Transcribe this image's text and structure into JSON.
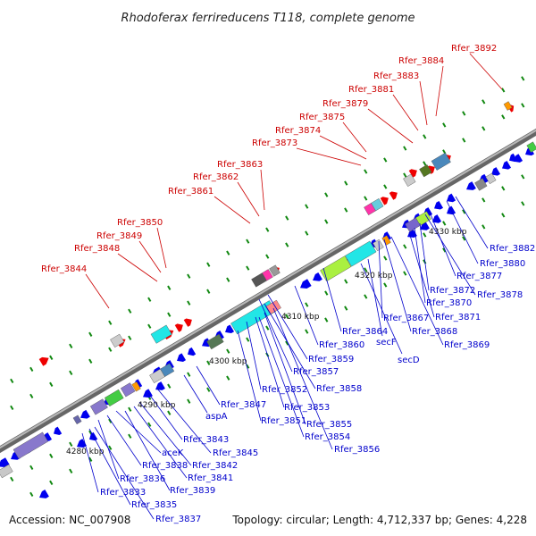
{
  "title": "Rhodoferax ferrireducens T118, complete genome",
  "footer": {
    "accession": "Accession: NC_007908",
    "summary": "Topology: circular; Length: 4,712,337 bp; Genes: 4,228"
  },
  "colors": {
    "backbone": "#888888",
    "forward_label": "#cc0000",
    "reverse_label": "#0000cc",
    "forward_gene": "#ee0000",
    "reverse_gene": "#0000ee",
    "tick": "#118811"
  },
  "kbp_labels": [
    "4280 kbp",
    "4290 kbp",
    "4300 kbp",
    "4310 kbp",
    "4320 kbp",
    "4330 kbp"
  ],
  "forward_labels": [
    "Rfer_3892",
    "Rfer_3884",
    "Rfer_3883",
    "Rfer_3881",
    "Rfer_3879",
    "Rfer_3875",
    "Rfer_3874",
    "Rfer_3873",
    "Rfer_3863",
    "Rfer_3862",
    "Rfer_3861",
    "Rfer_3850",
    "Rfer_3849",
    "Rfer_3848",
    "Rfer_3844"
  ],
  "reverse_labels": [
    "Rfer_3882",
    "Rfer_3880",
    "Rfer_3877",
    "Rfer_3878",
    "Rfer_3872",
    "Rfer_3870",
    "Rfer_3871",
    "Rfer_3867",
    "Rfer_3868",
    "Rfer_3869",
    "Rfer_3864",
    "secF",
    "secD",
    "Rfer_3860",
    "Rfer_3859",
    "Rfer_3857",
    "Rfer_3858",
    "Rfer_3852",
    "Rfer_3853",
    "Rfer_3855",
    "Rfer_3854",
    "Rfer_3856",
    "Rfer_3847",
    "Rfer_3851",
    "aspA",
    "Rfer_3843",
    "Rfer_3845",
    "Rfer_3842",
    "Rfer_3841",
    "aceK",
    "Rfer_3838",
    "Rfer_3836",
    "Rfer_3839",
    "Rfer_3833",
    "Rfer_3835",
    "Rfer_3837"
  ]
}
